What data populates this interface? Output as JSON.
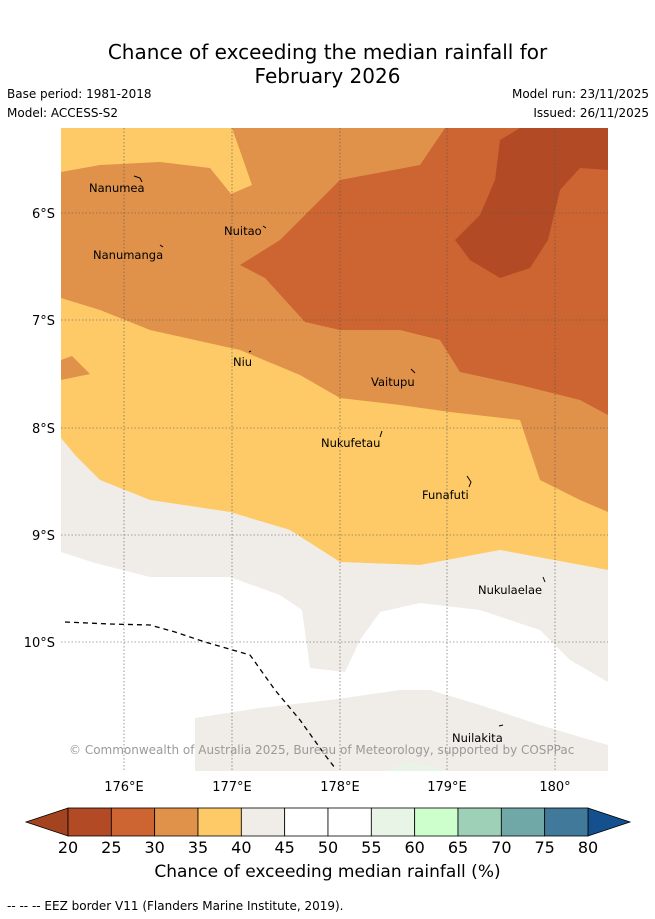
{
  "title": "Chance of exceeding the median rainfall for February 2026",
  "title_line1": "Chance of exceeding the median rainfall for",
  "title_line2": "February 2026",
  "base_period": "Base period: 1981-2018",
  "model": "Model: ACCESS-S2",
  "model_run": "Model run: 23/11/2025",
  "issued": "Issued: 26/11/2025",
  "map": {
    "lat_labels": [
      "6°S",
      "7°S",
      "8°S",
      "9°S",
      "10°S"
    ],
    "lon_labels": [
      "176°E",
      "177°E",
      "178°E",
      "179°E",
      "180°"
    ],
    "places": [
      "Nanumea",
      "Nuitao",
      "Nanumanga",
      "Niu",
      "Vaitupu",
      "Nukufetau",
      "Funafuti",
      "Nukulaelae",
      "Nuilakita"
    ],
    "copyright": "© Commonwealth of Australia 2025, Bureau of Meteorology, supported by COSPPac"
  },
  "colorbar": {
    "ticks": [
      "20",
      "25",
      "30",
      "35",
      "40",
      "45",
      "50",
      "55",
      "60",
      "65",
      "70",
      "75",
      "80"
    ],
    "colors": [
      "#b24a25",
      "#cc6531",
      "#e0924a",
      "#fdca67",
      "#f0ece7",
      "#ffffff",
      "#ffffff",
      "#e8f5e6",
      "#ccffcc",
      "#9ed0b8",
      "#70a8a8",
      "#41799a"
    ],
    "under_color": "#a3431f",
    "over_color": "#13508d",
    "label": "Chance of exceeding median rainfall (%)"
  },
  "legend_note": "-- -- -- EEZ border V11 (Flanders Marine Institute, 2019)."
}
